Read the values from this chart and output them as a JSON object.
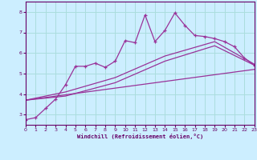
{
  "xlabel": "Windchill (Refroidissement éolien,°C)",
  "bg_color": "#cceeff",
  "plot_bg_color": "#cceeff",
  "grid_color": "#aadddd",
  "line_color": "#993399",
  "spine_color": "#660066",
  "tick_color": "#660066",
  "xlim": [
    0,
    23
  ],
  "ylim": [
    2.5,
    8.5
  ],
  "xticks": [
    0,
    1,
    2,
    3,
    4,
    5,
    6,
    7,
    8,
    9,
    10,
    11,
    12,
    13,
    14,
    15,
    16,
    17,
    18,
    19,
    20,
    21,
    22,
    23
  ],
  "yticks": [
    3,
    4,
    5,
    6,
    7,
    8
  ],
  "series1_x": [
    0,
    1,
    2,
    3,
    4,
    5,
    6,
    7,
    8,
    9,
    10,
    11,
    12,
    13,
    14,
    15,
    16,
    17,
    18,
    19,
    20,
    21,
    22,
    23
  ],
  "series1_y": [
    2.75,
    2.85,
    3.3,
    3.75,
    4.45,
    5.35,
    5.35,
    5.5,
    5.3,
    5.6,
    6.6,
    6.5,
    7.85,
    6.55,
    7.1,
    7.95,
    7.35,
    6.85,
    6.8,
    6.7,
    6.55,
    6.3,
    5.75,
    5.4
  ],
  "series2_x": [
    0,
    23
  ],
  "series2_y": [
    3.7,
    5.2
  ],
  "series3_x": [
    0,
    4,
    9,
    14,
    19,
    23
  ],
  "series3_y": [
    3.7,
    3.9,
    4.55,
    5.6,
    6.35,
    5.4
  ],
  "series4_x": [
    0,
    4,
    9,
    14,
    19,
    23
  ],
  "series4_y": [
    3.7,
    4.1,
    4.8,
    5.85,
    6.55,
    5.45
  ]
}
